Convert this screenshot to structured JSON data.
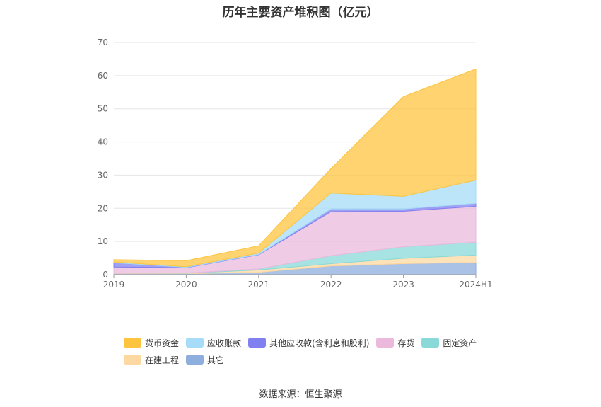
{
  "chart_data": {
    "type": "area",
    "stacked": true,
    "title": "历年主要资产堆积图（亿元）",
    "xlabel": "",
    "ylabel": "",
    "categories": [
      "2019",
      "2020",
      "2021",
      "2022",
      "2023",
      "2024H1"
    ],
    "ylim": [
      0,
      70
    ],
    "yticks": [
      0,
      10,
      20,
      30,
      40,
      50,
      60,
      70
    ],
    "grid": true,
    "legend_position": "bottom",
    "series": [
      {
        "name": "其它",
        "color": "#8eaede",
        "values": [
          0.3,
          0.3,
          0.7,
          2.6,
          3.3,
          3.7
        ]
      },
      {
        "name": "在建工程",
        "color": "#fdd8a0",
        "values": [
          0.1,
          0.1,
          0.7,
          0.7,
          1.6,
          2.2
        ]
      },
      {
        "name": "固定资产",
        "color": "#8ad9d9",
        "values": [
          0.0,
          0.1,
          0.3,
          2.4,
          3.5,
          3.9
        ]
      },
      {
        "name": "存货",
        "color": "#eab9dc",
        "values": [
          1.9,
          1.6,
          4.3,
          13.3,
          10.7,
          10.8
        ]
      },
      {
        "name": "其他应收款(含利息和股利)",
        "color": "#8080f0",
        "values": [
          1.3,
          0.1,
          0.1,
          0.8,
          0.7,
          0.9
        ]
      },
      {
        "name": "应收账款",
        "color": "#a6dcf8",
        "values": [
          0.2,
          0.2,
          0.4,
          4.8,
          3.8,
          7.0
        ]
      },
      {
        "name": "货币资金",
        "color": "#fdc440",
        "values": [
          0.7,
          1.8,
          2.2,
          7.4,
          30.1,
          33.5
        ]
      }
    ],
    "legend_order": [
      "货币资金",
      "应收账款",
      "其他应收款(含利息和股利)",
      "存货",
      "固定资产",
      "在建工程",
      "其它"
    ]
  },
  "source": "数据来源：恒生聚源"
}
